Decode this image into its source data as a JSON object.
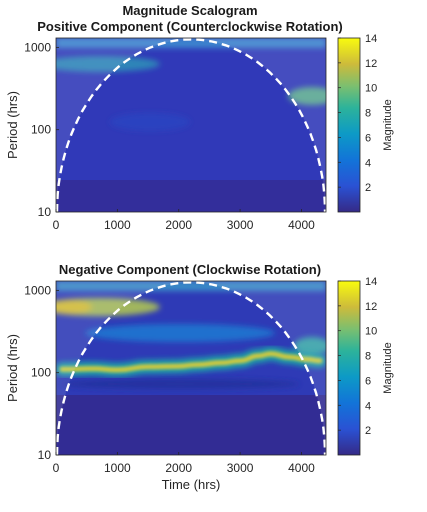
{
  "chart_data": [
    {
      "type": "heatmap",
      "title": "Magnitude Scalogram",
      "subtitle": "Positive Component (Counterclockwise Rotation)",
      "xlabel": "",
      "ylabel": "Period (hrs)",
      "xlim": [
        0,
        4400
      ],
      "ylim": [
        10,
        1300
      ],
      "yscale": "log",
      "xticks": [
        0,
        1000,
        2000,
        3000,
        4000
      ],
      "yticks": [
        10,
        100,
        1000
      ],
      "colorbar": {
        "label": "Magnitude",
        "range": [
          0,
          14
        ],
        "ticks": [
          2,
          4,
          6,
          8,
          10,
          12,
          14
        ],
        "colormap": "parula"
      },
      "cone_of_influence": {
        "style": "white-dashed",
        "peak_x": 2200,
        "peak_period": 1250
      },
      "features": [
        {
          "x_range": [
            0,
            1600
          ],
          "period_range": [
            500,
            900
          ],
          "magnitude": 3.5
        },
        {
          "x_range": [
            3000,
            4400
          ],
          "period_range": [
            200,
            350
          ],
          "magnitude": 5.5
        }
      ]
    },
    {
      "type": "heatmap",
      "title": "Negative Component (Clockwise Rotation)",
      "xlabel": "Time (hrs)",
      "ylabel": "Period (hrs)",
      "xlim": [
        0,
        4400
      ],
      "ylim": [
        10,
        1300
      ],
      "yscale": "log",
      "xticks": [
        0,
        1000,
        2000,
        3000,
        4000
      ],
      "yticks": [
        10,
        100,
        1000
      ],
      "colorbar": {
        "label": "Magnitude",
        "range": [
          0,
          14
        ],
        "ticks": [
          2,
          4,
          6,
          8,
          10,
          12,
          14
        ],
        "colormap": "parula"
      },
      "cone_of_influence": {
        "style": "white-dashed",
        "peak_x": 2200,
        "peak_period": 1250
      },
      "ridge": {
        "description": "inertial band",
        "points": [
          [
            100,
            110
          ],
          [
            600,
            112
          ],
          [
            1000,
            108
          ],
          [
            1500,
            118
          ],
          [
            2000,
            120
          ],
          [
            2300,
            125
          ],
          [
            2700,
            132
          ],
          [
            3000,
            140
          ],
          [
            3300,
            160
          ],
          [
            3500,
            170
          ],
          [
            3800,
            155
          ],
          [
            4100,
            145
          ],
          [
            4300,
            140
          ]
        ],
        "peak_magnitude": 12.5
      },
      "features": [
        {
          "x_range": [
            0,
            1700
          ],
          "period_range": [
            550,
            800
          ],
          "magnitude": 10
        },
        {
          "x_range": [
            300,
            3200
          ],
          "period_range": [
            250,
            450
          ],
          "magnitude": 5
        },
        {
          "x_range": [
            3800,
            4400
          ],
          "period_range": [
            150,
            260
          ],
          "magnitude": 6
        }
      ]
    }
  ]
}
